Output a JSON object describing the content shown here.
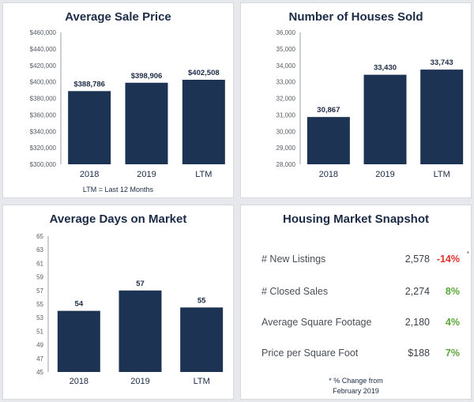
{
  "chart_data": [
    {
      "type": "bar",
      "title": "Average Sale Price",
      "categories": [
        "2018",
        "2019",
        "LTM"
      ],
      "values": [
        388786,
        398906,
        402508
      ],
      "data_labels": [
        "$388,786",
        "$398,906",
        "$402,508"
      ],
      "ylim": [
        300000,
        460000
      ],
      "yticks": [
        300000,
        320000,
        340000,
        360000,
        380000,
        400000,
        420000,
        440000,
        460000
      ],
      "ytick_labels": [
        "$300,000",
        "$320,000",
        "$340,000",
        "$360,000",
        "$380,000",
        "$400,000",
        "$420,000",
        "$440,000",
        "$460,000"
      ],
      "note": "LTM = Last 12 Months",
      "grid": false,
      "bar_color": "#1c3354"
    },
    {
      "type": "bar",
      "title": "Number of Houses Sold",
      "categories": [
        "2018",
        "2019",
        "LTM"
      ],
      "values": [
        30867,
        33430,
        33743
      ],
      "data_labels": [
        "30,867",
        "33,430",
        "33,743"
      ],
      "ylim": [
        28000,
        36000
      ],
      "yticks": [
        28000,
        29000,
        30000,
        31000,
        32000,
        33000,
        34000,
        35000,
        36000
      ],
      "ytick_labels": [
        "28,000",
        "29,000",
        "30,000",
        "31,000",
        "32,000",
        "33,000",
        "34,000",
        "35,000",
        "36,000"
      ],
      "grid": false,
      "bar_color": "#1c3354"
    },
    {
      "type": "bar",
      "title": "Average Days on Market",
      "categories": [
        "2018",
        "2019",
        "LTM"
      ],
      "values": [
        54,
        57,
        55
      ],
      "bar_heights": [
        54,
        57,
        54.5
      ],
      "data_labels": [
        "54",
        "57",
        "55"
      ],
      "ylim": [
        45,
        65
      ],
      "yticks": [
        45,
        47,
        49,
        51,
        53,
        55,
        57,
        59,
        61,
        63,
        65
      ],
      "ytick_labels": [
        "45",
        "47",
        "49",
        "51",
        "53",
        "55",
        "57",
        "59",
        "61",
        "63",
        "65"
      ],
      "grid": false,
      "bar_color": "#1c3354"
    }
  ],
  "snapshot": {
    "title": "Housing Market Snapshot",
    "rows": [
      {
        "label": "# New Listings",
        "value": "2,578",
        "change": "-14%",
        "color": "#e0302a"
      },
      {
        "label": "# Closed Sales",
        "value": "2,274",
        "change": "8%",
        "color": "#5aa63a"
      },
      {
        "label": "Average Square Footage",
        "value": "2,180",
        "change": "4%",
        "color": "#5aa63a"
      },
      {
        "label": "Price per Square Foot",
        "value": "$188",
        "change": "7%",
        "color": "#5aa63a"
      }
    ],
    "asterisk": "*",
    "footnote_line1": "* % Change from",
    "footnote_line2": "February 2019"
  }
}
